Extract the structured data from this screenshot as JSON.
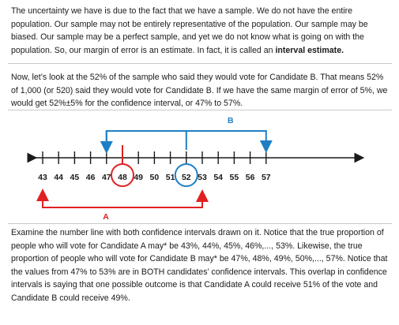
{
  "paragraph1": {
    "text": "The uncertainty we have is due to the fact that we have a sample. We do not have the entire population. Our sample may not be entirely representative of the population. Our sample may be biased. Our sample may be a perfect sample, and yet we do not know what is going on with the population. So, our margin of error is an estimate. In fact, it is called an ",
    "bold": "interval estimate."
  },
  "paragraph2": {
    "text": "Now, let’s look at the 52% of the sample who said they would vote for Candidate B. That means 52% of 1,000 (or 520) said they would vote for Candidate B. If we have the same margin of error of 5%, we would get 52%±5% for the confidence interval, or 47% to 57%."
  },
  "number_line": {
    "ticks": [
      "43",
      "44",
      "45",
      "46",
      "47",
      "48",
      "49",
      "50",
      "51",
      "52",
      "53",
      "54",
      "55",
      "56",
      "57"
    ],
    "candidate_a": {
      "label": "A",
      "color": "#e02020",
      "center": "48",
      "interval": [
        "43",
        "53"
      ]
    },
    "candidate_b": {
      "label": "B",
      "color": "#1f7fc4",
      "center": "52",
      "interval": [
        "47",
        "57"
      ]
    }
  },
  "paragraph3": {
    "text": "Examine the number line with both confidence intervals drawn on it. Notice that the true proportion of people who will vote for Candidate A may* be 43%, 44%, 45%, 46%,..., 53%. Likewise, the true proportion of people who will vote for Candidate B may* be 47%, 48%, 49%, 50%,..., 57%. Notice that the values from 47% to 53% are in BOTH candidates’ confidence intervals. This overlap in confidence intervals is saying that one possible outcome is that Candidate A could receive 51% of the vote and Candidate B could receive 49%."
  }
}
